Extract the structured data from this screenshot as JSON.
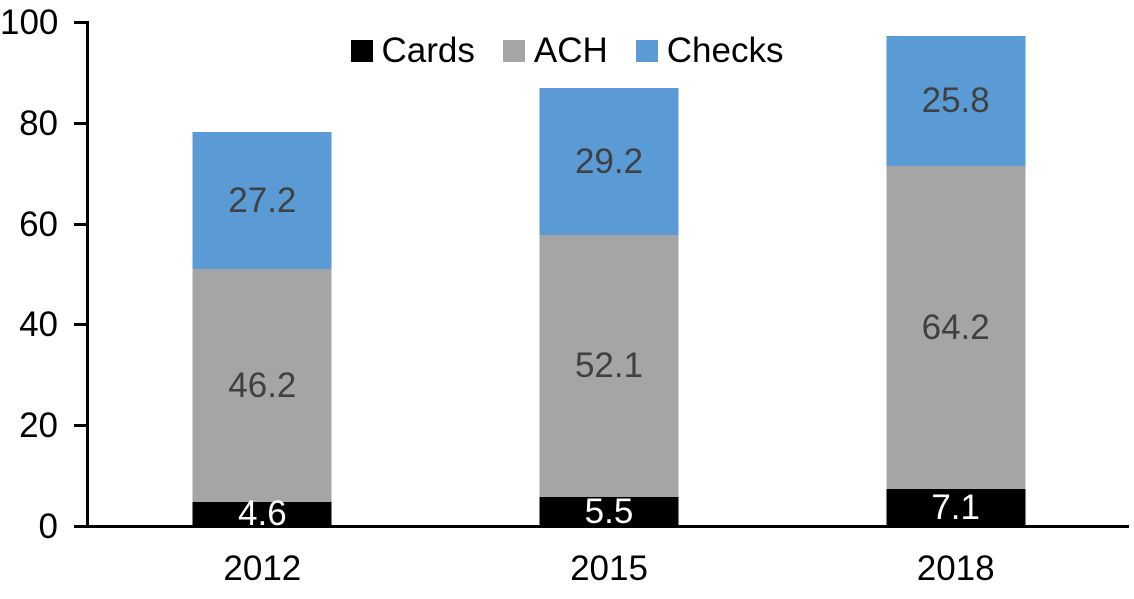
{
  "chart_data": {
    "type": "bar",
    "stacked": true,
    "title": "",
    "categories": [
      "2012",
      "2015",
      "2018"
    ],
    "series": [
      {
        "name": "Cards",
        "color": "#000000",
        "label_color": "#ffffff",
        "values": [
          4.6,
          5.5,
          7.1
        ]
      },
      {
        "name": "ACH",
        "color": "#a5a5a5",
        "label_color": "#404040",
        "values": [
          46.2,
          52.1,
          64.2
        ]
      },
      {
        "name": "Checks",
        "color": "#5b9bd5",
        "label_color": "#404040",
        "values": [
          27.2,
          29.2,
          25.8
        ]
      }
    ],
    "totals": [
      78.0,
      86.8,
      97.1
    ],
    "y_axis": {
      "min": 0,
      "max": 100,
      "tick_interval": 20,
      "tick_labels": [
        "0",
        "20",
        "40",
        "60",
        "80",
        "100"
      ]
    },
    "legend": {
      "position": "top-center",
      "entries": [
        "Cards",
        "ACH",
        "Checks"
      ]
    },
    "grid": false,
    "axis_color": "#000000"
  }
}
